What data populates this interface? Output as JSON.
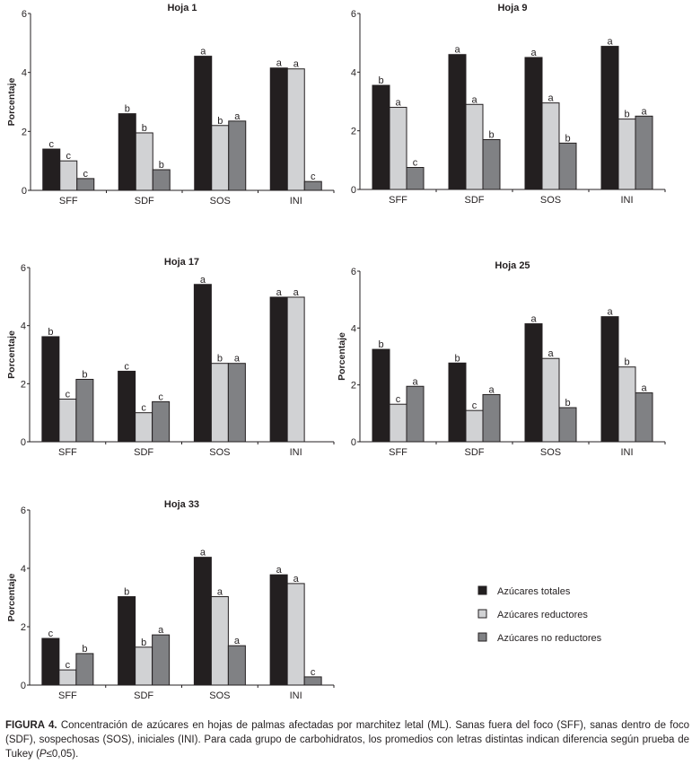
{
  "chart_data": [
    {
      "type": "bar",
      "title": "Hoja 1",
      "ylabel": "Porcentaje",
      "xlabel": "",
      "ylim": [
        0,
        6
      ],
      "yticks": [
        0,
        2,
        4,
        6
      ],
      "categories": [
        "SFF",
        "SDF",
        "SOS",
        "INI"
      ],
      "series": [
        {
          "name": "Azúcares totales",
          "values": [
            1.4,
            2.6,
            4.55,
            4.15
          ],
          "letters": [
            "c",
            "b",
            "a",
            "a"
          ]
        },
        {
          "name": "Azúcares reductores",
          "values": [
            1.0,
            1.95,
            2.2,
            4.12
          ],
          "letters": [
            "c",
            "b",
            "b",
            "a"
          ]
        },
        {
          "name": "Azúcares no reductores",
          "values": [
            0.4,
            0.7,
            2.35,
            0.3
          ],
          "letters": [
            "c",
            "b",
            "a",
            "c"
          ]
        }
      ]
    },
    {
      "type": "bar",
      "title": "Hoja 9",
      "ylabel": "Porcentaje",
      "xlabel": "",
      "ylim": [
        0,
        6
      ],
      "yticks": [
        0,
        2,
        4,
        6
      ],
      "categories": [
        "SFF",
        "SDF",
        "SOS",
        "INI"
      ],
      "series": [
        {
          "name": "Azúcares totales",
          "values": [
            3.55,
            4.6,
            4.5,
            4.88
          ],
          "letters": [
            "b",
            "a",
            "a",
            "a"
          ]
        },
        {
          "name": "Azúcares reductores",
          "values": [
            2.8,
            2.9,
            2.95,
            2.4
          ],
          "letters": [
            "a",
            "a",
            "a",
            "b"
          ]
        },
        {
          "name": "Azúcares no reductores",
          "values": [
            0.75,
            1.7,
            1.58,
            2.5
          ],
          "letters": [
            "c",
            "b",
            "b",
            "a"
          ]
        }
      ]
    },
    {
      "type": "bar",
      "title": "Hoja 17",
      "ylabel": "Porcentaje",
      "xlabel": "",
      "ylim": [
        0,
        6
      ],
      "yticks": [
        0,
        2,
        4,
        6
      ],
      "categories": [
        "SFF",
        "SDF",
        "SOS",
        "INI"
      ],
      "series": [
        {
          "name": "Azúcares totales",
          "values": [
            3.62,
            2.43,
            5.42,
            4.98
          ],
          "letters": [
            "b",
            "c",
            "a",
            "a"
          ]
        },
        {
          "name": "Azúcares reductores",
          "values": [
            1.47,
            1.0,
            2.7,
            4.98
          ],
          "letters": [
            "c",
            "c",
            "b",
            "a"
          ]
        },
        {
          "name": "Azúcares no reductores",
          "values": [
            2.15,
            1.38,
            2.7,
            0
          ],
          "letters": [
            "b",
            "c",
            "a",
            ""
          ]
        }
      ]
    },
    {
      "type": "bar",
      "title": "Hoja 25",
      "ylabel": "Porcentaje",
      "xlabel": "",
      "ylim": [
        0,
        6
      ],
      "yticks": [
        0,
        2,
        4,
        6
      ],
      "categories": [
        "SFF",
        "SDF",
        "SOS",
        "INI"
      ],
      "series": [
        {
          "name": "Azúcares totales",
          "values": [
            3.25,
            2.77,
            4.15,
            4.4
          ],
          "letters": [
            "b",
            "b",
            "a",
            "a"
          ]
        },
        {
          "name": "Azúcares reductores",
          "values": [
            1.32,
            1.1,
            2.93,
            2.63
          ],
          "letters": [
            "c",
            "c",
            "a",
            "b"
          ]
        },
        {
          "name": "Azúcares no reductores",
          "values": [
            1.95,
            1.66,
            1.2,
            1.72
          ],
          "letters": [
            "a",
            "a",
            "b",
            "a"
          ]
        }
      ]
    },
    {
      "type": "bar",
      "title": "Hoja 33",
      "ylabel": "Porcentaje",
      "xlabel": "",
      "ylim": [
        0,
        6
      ],
      "yticks": [
        0,
        2,
        4,
        6
      ],
      "categories": [
        "SFF",
        "SDF",
        "SOS",
        "INI"
      ],
      "series": [
        {
          "name": "Azúcares totales",
          "values": [
            1.6,
            3.03,
            4.38,
            3.78
          ],
          "letters": [
            "c",
            "b",
            "a",
            "a"
          ]
        },
        {
          "name": "Azúcares reductores",
          "values": [
            0.52,
            1.3,
            3.03,
            3.48
          ],
          "letters": [
            "c",
            "b",
            "a",
            "a"
          ]
        },
        {
          "name": "Azúcares no reductores",
          "values": [
            1.08,
            1.72,
            1.35,
            0.28
          ],
          "letters": [
            "b",
            "a",
            "a",
            "c"
          ]
        }
      ]
    }
  ],
  "legend": {
    "placement": "bottom-right",
    "items": [
      {
        "label": "Azúcares totales",
        "color": "#231f20"
      },
      {
        "label": "Azúcares reductores",
        "color": "#d1d2d4"
      },
      {
        "label": "Azúcares no reductores",
        "color": "#808184"
      }
    ]
  },
  "series_colors": [
    "#231f20",
    "#d1d2d4",
    "#808184"
  ],
  "caption": {
    "label": "FIGURA 4.",
    "text": " Concentración de azúcares en hojas de palmas afectadas por marchitez letal (ML). Sanas fuera del foco (SFF), sanas dentro de foco (SDF), sospechosas (SOS), iniciales (INI). Para cada grupo de carbohidratos, los promedios con letras distintas indican diferencia según prueba de Tukey (",
    "p_symbol": "P",
    "p_text": "≤0,05)."
  }
}
